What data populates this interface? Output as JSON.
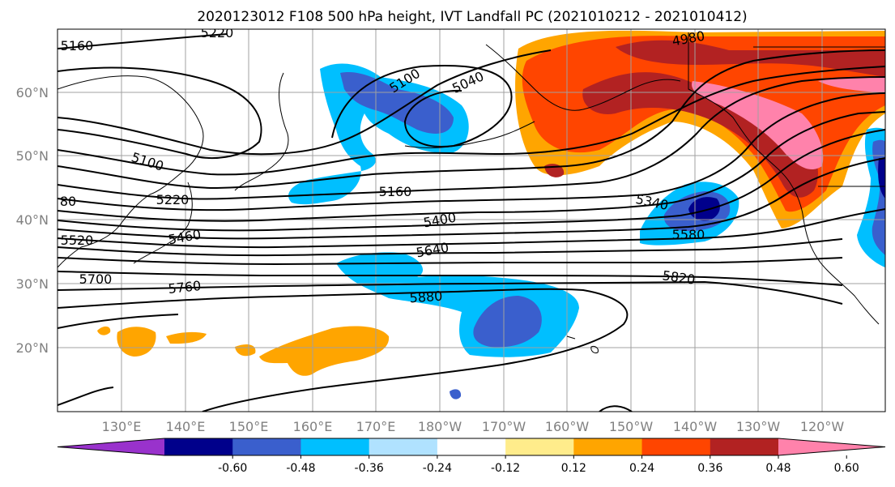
{
  "title": "2020123012 F108 500 hPa height, IVT Landfall PC (2021010212 - 2021010412)",
  "lat_labels": [
    "60°N",
    "50°N",
    "40°N",
    "30°N",
    "20°N"
  ],
  "lon_labels": [
    "130°E",
    "140°E",
    "150°E",
    "160°E",
    "170°E",
    "180°W",
    "170°W",
    "160°W",
    "150°W",
    "140°W",
    "130°W",
    "120°W"
  ],
  "contour_labels": [
    "5220",
    "5160",
    "5100",
    "5040",
    "4980",
    "5100",
    "5220",
    "5160",
    "5340",
    "5400",
    "5460",
    "5520",
    "5580",
    "5640",
    "5700",
    "5760",
    "5820",
    "5880",
    "80"
  ],
  "colorbar": {
    "ticks": [
      "-0.60",
      "-0.48",
      "-0.36",
      "-0.24",
      "-0.12",
      "0.12",
      "0.24",
      "0.36",
      "0.48",
      "0.60"
    ],
    "colors": [
      "#9932cc",
      "#00008b",
      "#3a5fcd",
      "#00bfff",
      "#b0e2ff",
      "#ffffff",
      "#ffec8b",
      "#ffa500",
      "#ff4500",
      "#b22222",
      "#ff82ab"
    ]
  }
}
